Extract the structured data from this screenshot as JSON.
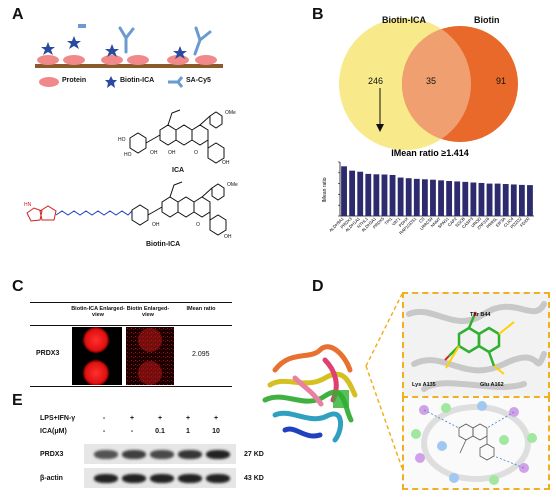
{
  "panels": {
    "a": {
      "letter": "A",
      "legend": {
        "protein": "Protein",
        "biotin_ica": "Biotin-ICA",
        "sa_cy5": "SA-Cy5"
      },
      "mol_labels": {
        "ica": "ICA",
        "biotin_ica": "Biotin-ICA"
      }
    },
    "b": {
      "letter": "B",
      "venn": {
        "left_label": "Biotin-ICA",
        "right_label": "Biotin",
        "left_only": "246",
        "overlap": "35",
        "right_only": "91"
      }
    },
    "c": {
      "letter": "C",
      "headers": {
        "col1": "Biotin-ICA Enlarged-view",
        "col2": "Biotin Enlarged-view",
        "col3": "IMean ratio"
      },
      "row_label": "PRDX3",
      "value": "2.095"
    },
    "d": {
      "letter": "D",
      "residues": {
        "thr": "Thr B44",
        "lys": "Lys A135",
        "glu": "Glu A162"
      }
    },
    "e": {
      "letter": "E",
      "conditions": {
        "lps_label": "LPS+IFN-γ",
        "lps_values": [
          "-",
          "+",
          "+",
          "+",
          "+"
        ],
        "ica_label": "ICA(μM)",
        "ica_values": [
          "-",
          "-",
          "0.1",
          "1",
          "10"
        ]
      },
      "rows": [
        {
          "name": "PRDX3",
          "size": "27 KD"
        },
        {
          "name": "β-actin",
          "size": "43 KD"
        }
      ]
    }
  },
  "chart_data": {
    "type": "bar",
    "title": "IMean ratio ≥1.414",
    "ylabel": "IMean ratio",
    "color": "#2d2a6e",
    "categories": [
      "ALDH9A1",
      "PRDX3",
      "ALDH1A1",
      "NTHL1",
      "ALDH3A1",
      "PRDX5",
      "TPI1",
      "VAT1",
      "PDHX",
      "RAP1GDS1",
      "CS",
      "LRRC59",
      "NNMT",
      "SPAG1",
      "CAP2",
      "SGCB",
      "CASP3",
      "UROD",
      "ZNF316",
      "PRR5L",
      "EIF3A",
      "CLIC4",
      "PDZD2",
      "FDXR"
    ],
    "values": [
      2.3,
      2.1,
      2.05,
      1.95,
      1.93,
      1.92,
      1.9,
      1.78,
      1.75,
      1.72,
      1.7,
      1.68,
      1.65,
      1.62,
      1.6,
      1.58,
      1.55,
      1.53,
      1.5,
      1.5,
      1.48,
      1.46,
      1.44,
      1.43
    ],
    "ylim": [
      0,
      2.5
    ]
  }
}
